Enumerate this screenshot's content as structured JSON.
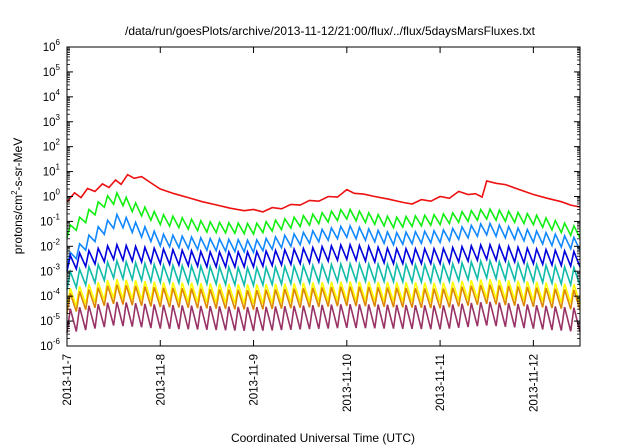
{
  "chart_data": {
    "type": "line",
    "title": "/data/run/goesPlots/archive/2013-11-12/21:00/flux/../flux/5daysMarsFluxes.txt",
    "xlabel": "Coordinated Universal Time (UTC)",
    "ylabel": "protons/cm²-s-sr-MeV",
    "ylabel_parts": {
      "pre": "protons/cm",
      "sup": "2",
      "post": "-s-sr-MeV"
    },
    "yscale": "log",
    "ylim_exp": [
      -6,
      6
    ],
    "y_ticks": [
      {
        "base": "10",
        "exp": "-6",
        "e": -6
      },
      {
        "base": "10",
        "exp": "-5",
        "e": -5
      },
      {
        "base": "10",
        "exp": "-4",
        "e": -4
      },
      {
        "base": "10",
        "exp": "-3",
        "e": -3
      },
      {
        "base": "10",
        "exp": "-2",
        "e": -2
      },
      {
        "base": "10",
        "exp": "-1",
        "e": -1
      },
      {
        "base": "10",
        "exp": "0",
        "e": 0
      },
      {
        "base": "10",
        "exp": "1",
        "e": 1
      },
      {
        "base": "10",
        "exp": "2",
        "e": 2
      },
      {
        "base": "10",
        "exp": "3",
        "e": 3
      },
      {
        "base": "10",
        "exp": "4",
        "e": 4
      },
      {
        "base": "10",
        "exp": "5",
        "e": 5
      },
      {
        "base": "10",
        "exp": "6",
        "e": 6
      }
    ],
    "x_ticks": [
      "2013-11-7",
      "2013-11-8",
      "2013-11-9",
      "2013-11-10",
      "2013-11-11",
      "2013-11-12"
    ],
    "x_range_days": [
      0,
      5.5
    ],
    "grid": false,
    "series": [
      {
        "color": "#ee1111",
        "points": [
          [
            0,
            0.6
          ],
          [
            0.08,
            1.4
          ],
          [
            0.15,
            0.9
          ],
          [
            0.22,
            2.1
          ],
          [
            0.3,
            1.6
          ],
          [
            0.38,
            3.2
          ],
          [
            0.45,
            2.3
          ],
          [
            0.52,
            4.6
          ],
          [
            0.58,
            3.1
          ],
          [
            0.65,
            7.5
          ],
          [
            0.72,
            5.4
          ],
          [
            0.8,
            6.3
          ],
          [
            0.9,
            3.5
          ],
          [
            1.0,
            2.0
          ],
          [
            1.15,
            1.3
          ],
          [
            1.3,
            0.9
          ],
          [
            1.45,
            0.62
          ],
          [
            1.6,
            0.46
          ],
          [
            1.75,
            0.34
          ],
          [
            1.9,
            0.27
          ],
          [
            2.0,
            0.3
          ],
          [
            2.1,
            0.24
          ],
          [
            2.2,
            0.36
          ],
          [
            2.3,
            0.32
          ],
          [
            2.4,
            0.48
          ],
          [
            2.5,
            0.45
          ],
          [
            2.6,
            0.7
          ],
          [
            2.7,
            0.65
          ],
          [
            2.8,
            1.0
          ],
          [
            2.9,
            0.95
          ],
          [
            3.0,
            1.9
          ],
          [
            3.08,
            1.35
          ],
          [
            3.18,
            1.25
          ],
          [
            3.3,
            1.0
          ],
          [
            3.45,
            0.78
          ],
          [
            3.6,
            0.58
          ],
          [
            3.7,
            0.5
          ],
          [
            3.8,
            0.75
          ],
          [
            3.9,
            0.65
          ],
          [
            4.0,
            1.0
          ],
          [
            4.1,
            0.85
          ],
          [
            4.2,
            1.6
          ],
          [
            4.3,
            1.2
          ],
          [
            4.38,
            1.3
          ],
          [
            4.45,
            0.95
          ],
          [
            4.5,
            4.2
          ],
          [
            4.6,
            3.4
          ],
          [
            4.7,
            3.0
          ],
          [
            4.85,
            1.9
          ],
          [
            5.0,
            1.2
          ],
          [
            5.15,
            0.85
          ],
          [
            5.3,
            0.62
          ],
          [
            5.4,
            0.45
          ],
          [
            5.5,
            0.38
          ]
        ]
      },
      {
        "color": "#11ee11",
        "level": [
          0.12,
          0.05,
          0.2,
          0.14,
          0.2,
          0.03
        ],
        "ratio": 2.6,
        "anchors": [
          [
            0,
            0.035
          ],
          [
            0.4,
            0.6
          ],
          [
            0.55,
            0.9
          ],
          [
            0.7,
            0.4
          ],
          [
            1.0,
            0.12
          ],
          [
            1.5,
            0.06
          ],
          [
            2.0,
            0.05
          ],
          [
            2.5,
            0.1
          ],
          [
            3.0,
            0.2
          ],
          [
            3.5,
            0.09
          ],
          [
            4.0,
            0.12
          ],
          [
            4.5,
            0.2
          ],
          [
            5.0,
            0.12
          ],
          [
            5.5,
            0.035
          ]
        ]
      },
      {
        "color": "#1188ff",
        "ratio": 3.0,
        "anchors": [
          [
            0,
            0.0025
          ],
          [
            0.35,
            0.04
          ],
          [
            0.55,
            0.12
          ],
          [
            0.75,
            0.05
          ],
          [
            1.0,
            0.018
          ],
          [
            1.5,
            0.012
          ],
          [
            2.0,
            0.01
          ],
          [
            2.5,
            0.02
          ],
          [
            3.0,
            0.04
          ],
          [
            3.5,
            0.02
          ],
          [
            4.0,
            0.025
          ],
          [
            4.5,
            0.05
          ],
          [
            5.0,
            0.025
          ],
          [
            5.5,
            0.012
          ]
        ]
      },
      {
        "color": "#0000dd",
        "ratio": 4.0,
        "anchors": [
          [
            0,
            0.002
          ],
          [
            0.5,
            0.006
          ],
          [
            1.0,
            0.004
          ],
          [
            1.5,
            0.003
          ],
          [
            2.0,
            0.003
          ],
          [
            2.5,
            0.004
          ],
          [
            3.0,
            0.006
          ],
          [
            3.5,
            0.004
          ],
          [
            4.0,
            0.004
          ],
          [
            4.5,
            0.006
          ],
          [
            5.0,
            0.004
          ],
          [
            5.5,
            0.003
          ]
        ]
      },
      {
        "color": "#11bbaa",
        "ratio": 5.0,
        "anchors": [
          [
            0,
            0.0004
          ],
          [
            0.5,
            0.0012
          ],
          [
            1.0,
            0.0008
          ],
          [
            2.0,
            0.0006
          ],
          [
            3.0,
            0.0009
          ],
          [
            4.0,
            0.0008
          ],
          [
            4.5,
            0.0012
          ],
          [
            5.5,
            0.0006
          ]
        ]
      },
      {
        "color": "#ffff00",
        "ratio": 6.0,
        "anchors": [
          [
            0,
            8e-05
          ],
          [
            0.5,
            0.0002
          ],
          [
            1.0,
            0.00015
          ],
          [
            2.0,
            0.00012
          ],
          [
            3.0,
            0.00016
          ],
          [
            4.0,
            0.00014
          ],
          [
            4.5,
            0.0002
          ],
          [
            5.5,
            0.00012
          ]
        ]
      },
      {
        "color": "#dd8800",
        "ratio": 6.0,
        "anchors": [
          [
            0,
            5e-05
          ],
          [
            0.5,
            0.00012
          ],
          [
            1.0,
            9e-05
          ],
          [
            2.0,
            7e-05
          ],
          [
            3.0,
            0.0001
          ],
          [
            4.0,
            8e-05
          ],
          [
            4.5,
            0.00012
          ],
          [
            5.5,
            7e-05
          ]
        ]
      },
      {
        "color": "#993366",
        "ratio": 9.0,
        "anchors": [
          [
            0,
            1e-05
          ],
          [
            0.5,
            2e-05
          ],
          [
            1.0,
            1.5e-05
          ],
          [
            2.0,
            1.2e-05
          ],
          [
            3.0,
            1.6e-05
          ],
          [
            4.0,
            1.4e-05
          ],
          [
            4.5,
            2e-05
          ],
          [
            5.5,
            1.1e-05
          ]
        ]
      }
    ]
  }
}
